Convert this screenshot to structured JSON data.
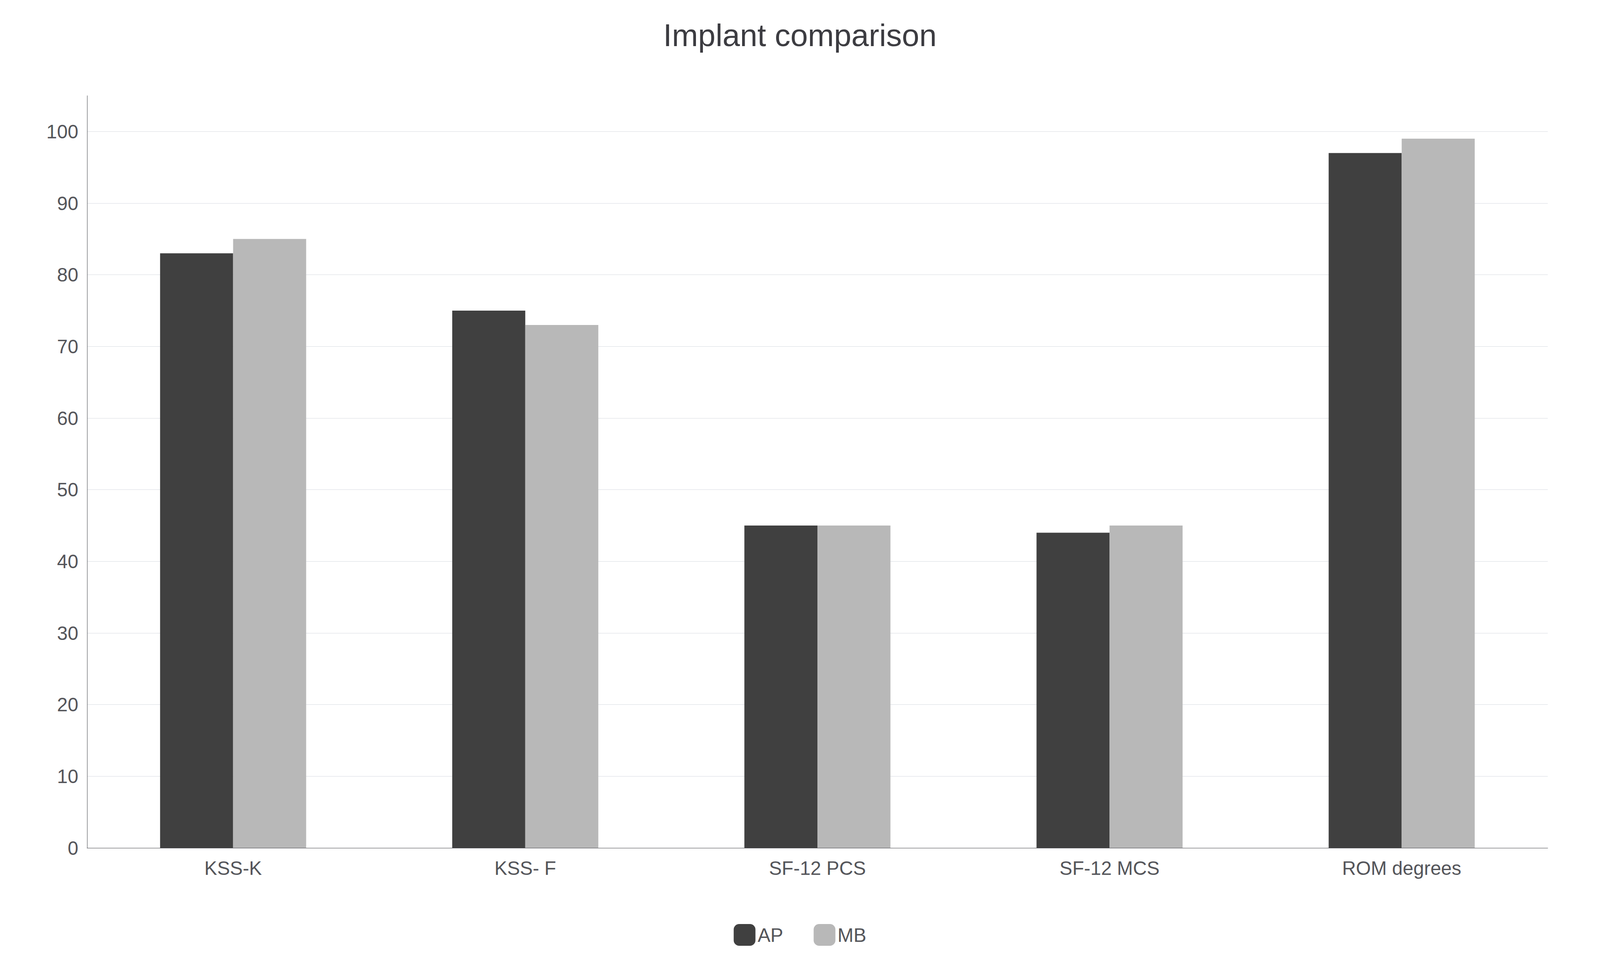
{
  "chart_data": {
    "type": "bar",
    "title": "Implant comparison",
    "categories": [
      "KSS-K",
      "KSS- F",
      "SF-12 PCS",
      "SF-12 MCS",
      "ROM degrees"
    ],
    "series": [
      {
        "name": "AP",
        "color": "#404040",
        "values": [
          83,
          75,
          45,
          44,
          97
        ]
      },
      {
        "name": "MB",
        "color": "#b8b8b8",
        "values": [
          85,
          73,
          45,
          45,
          99
        ]
      }
    ],
    "ylim": [
      0,
      105
    ],
    "yticks": [
      0,
      10,
      20,
      30,
      40,
      50,
      60,
      70,
      80,
      90,
      100
    ],
    "grid": true,
    "legend": "bottom"
  }
}
